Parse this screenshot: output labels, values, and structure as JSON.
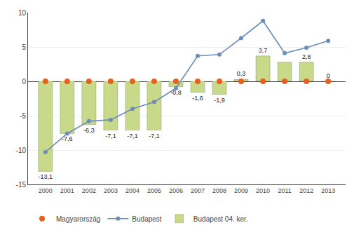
{
  "chart_data": {
    "type": "bar",
    "x": [
      2000,
      2001,
      2002,
      2003,
      2004,
      2005,
      2006,
      2007,
      2008,
      2009,
      2010,
      2011,
      2012,
      2013
    ],
    "xlim": [
      1999.2,
      2013.8
    ],
    "xticks": [
      2000,
      2001,
      2002,
      2003,
      2004,
      2005,
      2006,
      2007,
      2008,
      2009,
      2010,
      2011,
      2012,
      2013
    ],
    "ylim": [
      -15,
      10
    ],
    "yticks": [
      -15,
      -10,
      -5,
      0,
      5,
      10
    ],
    "grid": true,
    "legend": "bottom",
    "data_labels": true,
    "series": [
      {
        "name": "Budapest 04. ker.",
        "type": "bar",
        "color": "#c8d98a",
        "values": [
          -13.1,
          -7.6,
          -6.3,
          -7.1,
          -7.1,
          -7.1,
          -0.8,
          -1.6,
          -1.9,
          0.3,
          3.7,
          2.8,
          2.8,
          0
        ],
        "value_labels": [
          "-13,1",
          "-7,6",
          "-6,3",
          "-7,1",
          "-7,1",
          "-7,1",
          "-0,8",
          "-1,6",
          "-1,9",
          "0,3",
          "3,7",
          null,
          "2,8",
          "0"
        ]
      },
      {
        "name": "Budapest",
        "type": "line",
        "color": "#6b8db8",
        "marker": "circle",
        "values": [
          -10.3,
          -7.6,
          -5.8,
          -5.6,
          -4.0,
          -3.0,
          -1.0,
          3.7,
          3.9,
          6.3,
          8.8,
          4.1,
          4.9,
          5.9
        ]
      },
      {
        "name": "Magyarország",
        "type": "scatter",
        "color": "#e8601e",
        "marker": "circle",
        "values": [
          0,
          0,
          0,
          0,
          0,
          0,
          0,
          0,
          0,
          0,
          0,
          0,
          0,
          0
        ]
      }
    ]
  }
}
